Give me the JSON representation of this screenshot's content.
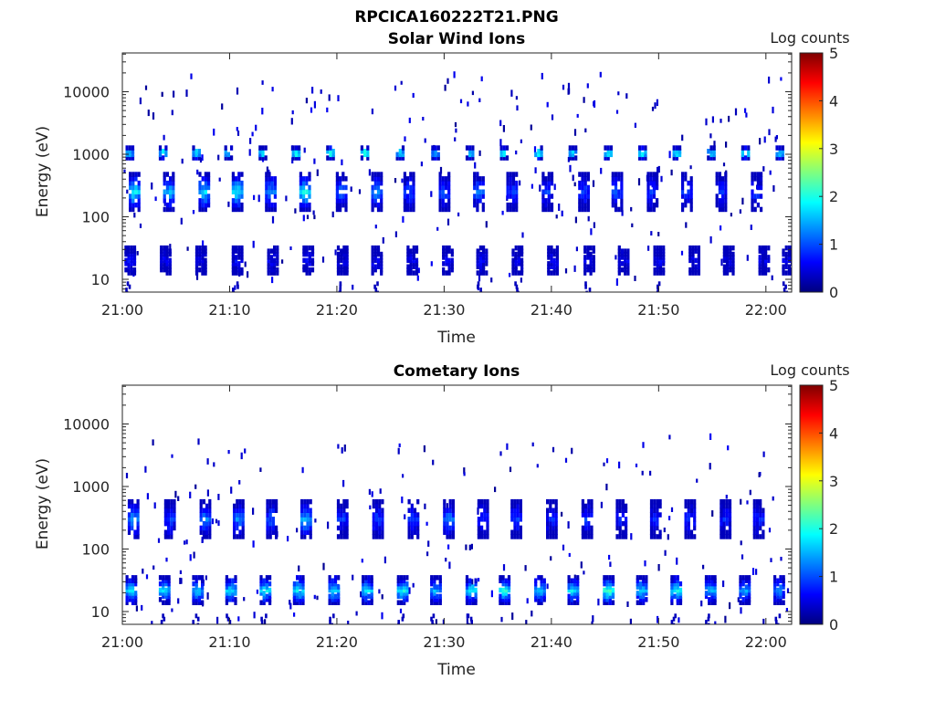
{
  "figure_title": "RPCICA160222T21.PNG",
  "colormap": [
    "#00007f",
    "#0000ff",
    "#007fff",
    "#00ffff",
    "#7fff7f",
    "#ffff00",
    "#ff7f00",
    "#ff0000",
    "#7f0000"
  ],
  "chart_data": [
    {
      "type": "heatmap",
      "title": "Solar Wind Ions",
      "xlabel": "Time",
      "ylabel": "Energy (eV)",
      "x_ticks": [
        "21:00",
        "21:10",
        "21:20",
        "21:30",
        "21:40",
        "21:50",
        "22:00"
      ],
      "y_ticks": [
        "10",
        "100",
        "1000",
        "10000"
      ],
      "y_scale": "log",
      "ylim": [
        5.5,
        45000
      ],
      "colorbar_label": "Log counts",
      "colorbar_ticks": [
        "0",
        "1",
        "2",
        "3",
        "4",
        "5"
      ],
      "clim": [
        0,
        5
      ],
      "series": [
        {
          "band": "1 keV solar wind bursts",
          "energy_eV": 1050,
          "times_min": [
            0.3,
            3.4,
            6.5,
            9.5,
            12.7,
            15.8,
            19.0,
            22.2,
            25.5,
            28.8,
            32.0,
            35.2,
            38.4,
            41.6,
            44.9,
            48.1,
            51.3,
            54.5,
            57.7,
            60.9
          ],
          "peak_log_counts": [
            2.0,
            2.2,
            2.1,
            2.0,
            2.1,
            2.4,
            2.6,
            2.5,
            2.2,
            2.0,
            2.1,
            2.2,
            2.4,
            2.1,
            2.3,
            2.3,
            2.2,
            2.1,
            2.5,
            2.2
          ]
        },
        {
          "band": "100-500 eV",
          "energy_eV": 250,
          "times_min": [
            0.6,
            3.8,
            7.1,
            10.2,
            13.3,
            16.5,
            19.9,
            23.2,
            26.2,
            29.5,
            32.7,
            35.8,
            39.1,
            42.5,
            45.6,
            48.9,
            52.1,
            55.3,
            58.6
          ],
          "peak_log_counts": [
            1.9,
            1.6,
            1.8,
            1.9,
            1.4,
            2.0,
            1.2,
            1.4,
            1.0,
            1.0,
            1.2,
            0.9,
            0.9,
            0.9,
            1.0,
            0.9,
            0.9,
            0.8,
            0.9
          ]
        },
        {
          "band": "15-30 eV",
          "energy_eV": 20,
          "times_min": [
            0.2,
            3.5,
            6.8,
            10.2,
            13.5,
            16.8,
            20.0,
            23.2,
            26.5,
            29.8,
            33.0,
            36.3,
            39.6,
            43.0,
            46.2,
            49.5,
            52.8,
            56.0,
            59.3,
            61.5
          ],
          "peak_log_counts": [
            0.6,
            0.6,
            0.5,
            0.6,
            0.6,
            0.6,
            0.5,
            0.6,
            0.6,
            0.6,
            0.6,
            0.5,
            0.6,
            0.5,
            0.6,
            0.6,
            0.5,
            0.5,
            0.5,
            0.5
          ]
        }
      ]
    },
    {
      "type": "heatmap",
      "title": "Cometary Ions",
      "xlabel": "Time",
      "ylabel": "Energy (eV)",
      "x_ticks": [
        "21:00",
        "21:10",
        "21:20",
        "21:30",
        "21:40",
        "21:50",
        "22:00"
      ],
      "y_ticks": [
        "10",
        "100",
        "1000",
        "10000"
      ],
      "y_scale": "log",
      "ylim": [
        5.5,
        45000
      ],
      "colorbar_label": "Log counts",
      "colorbar_ticks": [
        "0",
        "1",
        "2",
        "3",
        "4",
        "5"
      ],
      "clim": [
        0,
        5
      ],
      "series": [
        {
          "band": "15-40 eV cometary ions",
          "energy_eV": 22,
          "times_min": [
            0.3,
            3.4,
            6.5,
            9.6,
            12.8,
            15.9,
            19.2,
            22.3,
            25.6,
            28.7,
            32.0,
            35.1,
            38.4,
            41.5,
            44.8,
            47.9,
            51.1,
            54.3,
            57.5,
            60.7
          ],
          "peak_log_counts": [
            1.9,
            1.8,
            1.7,
            1.9,
            2.0,
            2.0,
            1.9,
            1.9,
            2.0,
            1.6,
            1.9,
            2.1,
            1.7,
            1.9,
            2.4,
            1.8,
            2.0,
            1.6,
            1.5,
            1.4
          ]
        },
        {
          "band": "200-400 eV",
          "energy_eV": 300,
          "times_min": [
            0.5,
            3.9,
            7.2,
            10.3,
            13.4,
            16.6,
            20.0,
            23.3,
            26.6,
            29.9,
            33.1,
            36.2,
            39.5,
            42.8,
            46.0,
            49.2,
            52.4,
            55.7,
            58.8
          ],
          "peak_log_counts": [
            1.5,
            1.0,
            1.4,
            1.3,
            1.1,
            1.6,
            0.9,
            1.0,
            0.9,
            1.3,
            0.8,
            0.9,
            0.8,
            0.9,
            0.8,
            0.8,
            0.8,
            0.8,
            0.8
          ]
        }
      ]
    }
  ]
}
